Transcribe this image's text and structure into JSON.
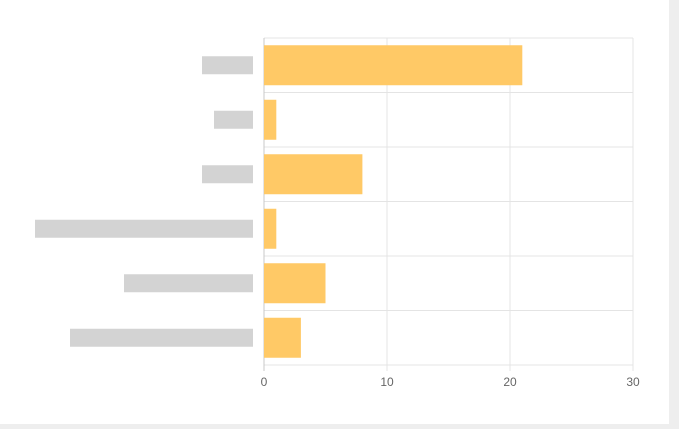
{
  "chart_data": {
    "type": "bar",
    "orientation": "horizontal",
    "categories": [
      null,
      null,
      null,
      null,
      null,
      null
    ],
    "values": [
      21,
      1,
      8,
      1,
      5,
      3
    ],
    "color": "#ffc966",
    "xlim": [
      0,
      30
    ],
    "xticks": [
      0,
      10,
      20,
      30
    ],
    "grid": true
  }
}
